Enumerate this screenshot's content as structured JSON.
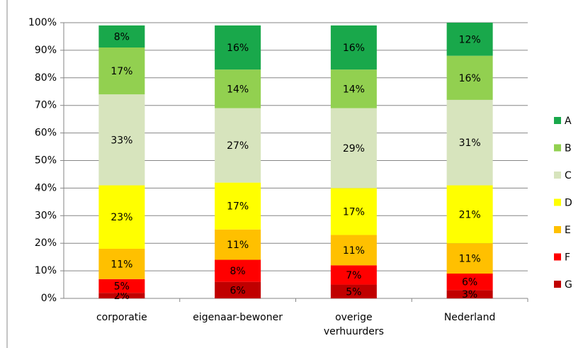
{
  "chart_data": {
    "type": "bar",
    "stacked": true,
    "categories": [
      "corporatie",
      "eigenaar-bewoner",
      "overige verhuurders",
      "Nederland"
    ],
    "series": [
      {
        "name": "A",
        "color": "#19a84b",
        "values": [
          8,
          16,
          16,
          12
        ],
        "value_labels": [
          "8%",
          "16%",
          "16%",
          "12%"
        ]
      },
      {
        "name": "B",
        "color": "#92d050",
        "values": [
          17,
          14,
          14,
          16
        ],
        "value_labels": [
          "17%",
          "14%",
          "14%",
          "16%"
        ]
      },
      {
        "name": "C",
        "color": "#d7e4bd",
        "values": [
          33,
          27,
          29,
          31
        ],
        "value_labels": [
          "33%",
          "27%",
          "29%",
          "31%"
        ]
      },
      {
        "name": "D",
        "color": "#ffff00",
        "values": [
          23,
          17,
          17,
          21
        ],
        "value_labels": [
          "23%",
          "17%",
          "17%",
          "21%"
        ]
      },
      {
        "name": "E",
        "color": "#ffc000",
        "values": [
          11,
          11,
          11,
          11
        ],
        "value_labels": [
          "11%",
          "11%",
          "11%",
          "11%"
        ]
      },
      {
        "name": "F",
        "color": "#ff0000",
        "values": [
          5,
          8,
          7,
          6
        ],
        "value_labels": [
          "5%",
          "8%",
          "7%",
          "6%"
        ]
      },
      {
        "name": "G",
        "color": "#c00000",
        "values": [
          2,
          6,
          5,
          3
        ],
        "value_labels": [
          "2%",
          "6%",
          "5%",
          "3%"
        ]
      }
    ],
    "ylim": [
      0,
      100
    ],
    "yticks": [
      {
        "value": 0,
        "label": "0%"
      },
      {
        "value": 10,
        "label": "10%"
      },
      {
        "value": 20,
        "label": "20%"
      },
      {
        "value": 30,
        "label": "30%"
      },
      {
        "value": 40,
        "label": "40%"
      },
      {
        "value": 50,
        "label": "50%"
      },
      {
        "value": 60,
        "label": "60%"
      },
      {
        "value": 70,
        "label": "70%"
      },
      {
        "value": 80,
        "label": "80%"
      },
      {
        "value": 90,
        "label": "90%"
      },
      {
        "value": 100,
        "label": "100%"
      }
    ],
    "grid": true,
    "legend": "right"
  }
}
